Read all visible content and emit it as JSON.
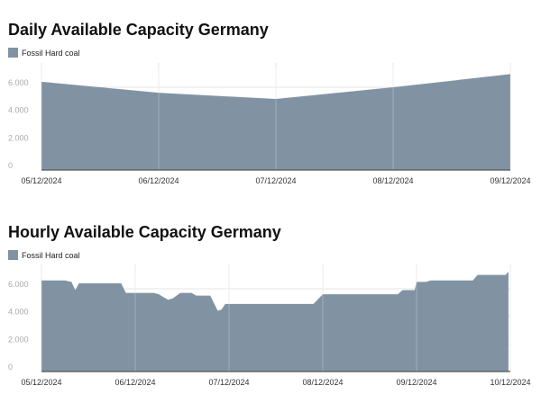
{
  "colors": {
    "series": "#8193a3",
    "grid": "#e6e6e6",
    "axis": "#555555",
    "tick": "#aaaaaa",
    "label": "#333333"
  },
  "chart_data": [
    {
      "type": "area",
      "title": "Daily Available Capacity Germany",
      "legend": {
        "label": "Fossil Hard coal",
        "position": "top-left"
      },
      "grid": true,
      "ylim": [
        0,
        7500
      ],
      "yticks": [
        0,
        2000,
        4000,
        6000
      ],
      "ytick_labels": [
        "0",
        "2.000",
        "4.000",
        "6.000"
      ],
      "xlim": [
        0,
        4
      ],
      "xticks": [
        0,
        1,
        2,
        3,
        4
      ],
      "xtick_labels": [
        "05/12/2024",
        "06/12/2024",
        "07/12/2024",
        "08/12/2024",
        "09/12/2024"
      ],
      "series": [
        {
          "name": "Fossil Hard coal",
          "x": [
            0,
            1,
            2,
            3,
            4
          ],
          "y": [
            6400,
            5600,
            5150,
            6000,
            6950
          ]
        }
      ]
    },
    {
      "type": "area",
      "title": "Hourly Available Capacity Germany",
      "legend": {
        "label": "Fossil Hard coal",
        "position": "top-left"
      },
      "grid": true,
      "ylim": [
        0,
        7500
      ],
      "yticks": [
        0,
        2000,
        4000,
        6000
      ],
      "ytick_labels": [
        "0",
        "2.000",
        "4.000",
        "6.000"
      ],
      "xlim": [
        0,
        5
      ],
      "xticks": [
        0,
        1,
        2,
        3,
        4,
        5
      ],
      "xtick_labels": [
        "05/12/2024",
        "06/12/2024",
        "07/12/2024",
        "08/12/2024",
        "09/12/2024",
        "10/12/2024"
      ],
      "series": [
        {
          "name": "Fossil Hard coal",
          "x": [
            0,
            0.25,
            0.32,
            0.36,
            0.4,
            0.45,
            0.85,
            0.9,
            1.2,
            1.25,
            1.35,
            1.4,
            1.48,
            1.6,
            1.65,
            1.75,
            1.8,
            1.88,
            1.92,
            1.96,
            2.0,
            2.2,
            2.3,
            2.35,
            2.9,
            3.0,
            3.4,
            3.45,
            3.8,
            3.85,
            3.98,
            4.0,
            4.1,
            4.15,
            4.6,
            4.65,
            4.95,
            4.98
          ],
          "y": [
            6600,
            6600,
            6500,
            5900,
            6400,
            6400,
            6400,
            5700,
            5700,
            5600,
            5200,
            5300,
            5700,
            5700,
            5500,
            5500,
            5500,
            4400,
            4500,
            4900,
            4900,
            4900,
            4900,
            4900,
            4900,
            5600,
            5600,
            5600,
            5600,
            5900,
            5900,
            6500,
            6500,
            6600,
            6600,
            7000,
            7000,
            7250
          ]
        }
      ]
    }
  ]
}
